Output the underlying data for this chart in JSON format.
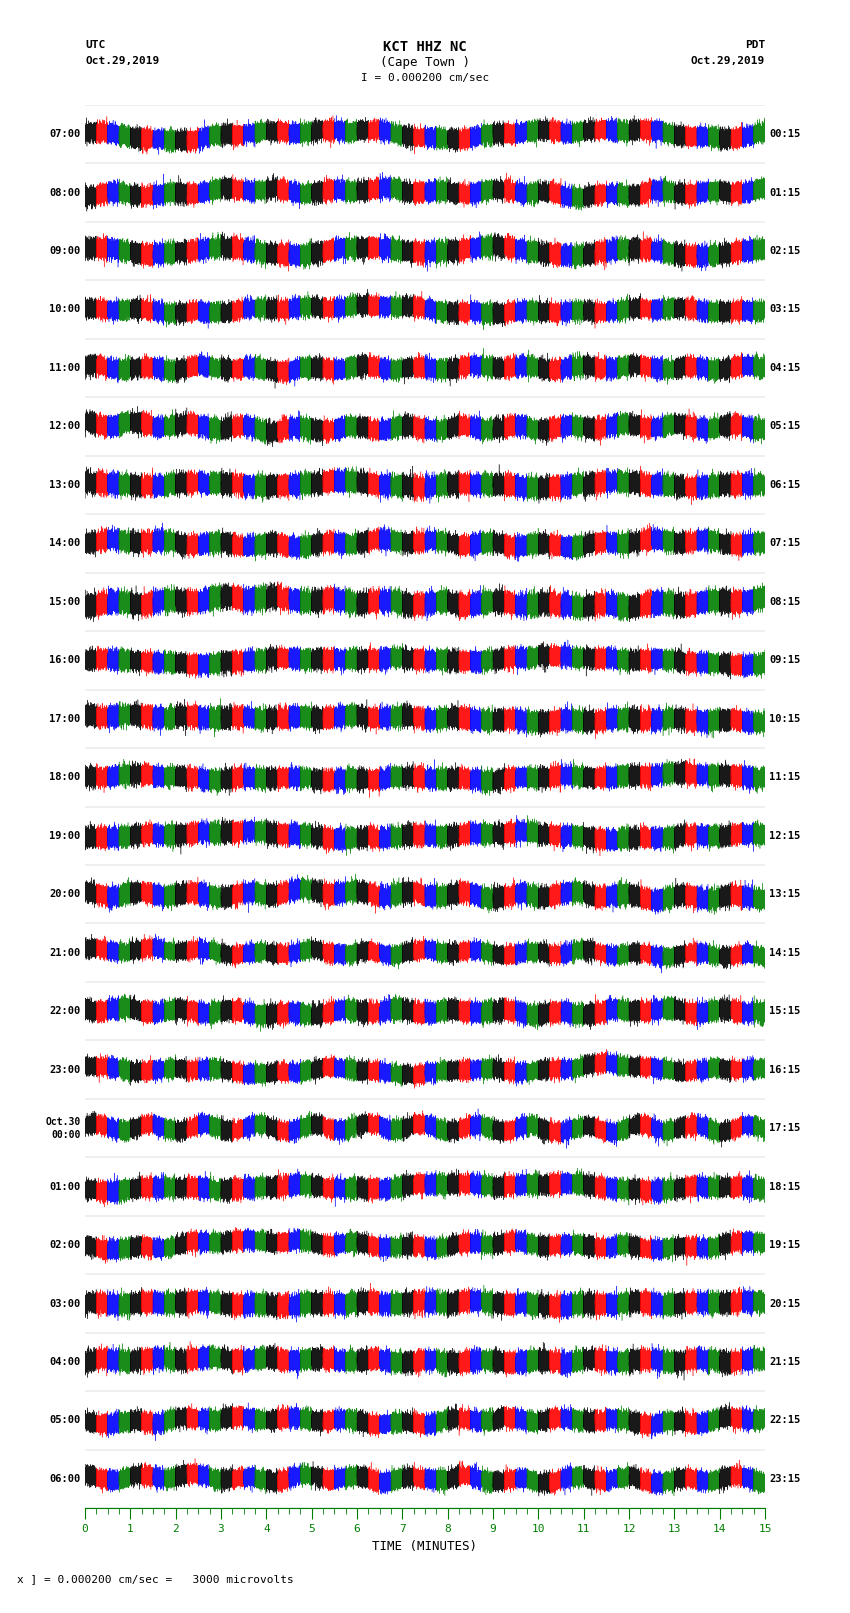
{
  "title_line1": "KCT HHZ NC",
  "title_line2": "(Cape Town )",
  "scale_label": "I = 0.000200 cm/sec",
  "left_label_top": "UTC",
  "left_label_date": "Oct.29,2019",
  "right_label_top": "PDT",
  "right_label_date": "Oct.29,2019",
  "bottom_label": "TIME (MINUTES)",
  "bottom_note": "x ] = 0.000200 cm/sec =   3000 microvolts",
  "left_times": [
    "07:00",
    "08:00",
    "09:00",
    "10:00",
    "11:00",
    "12:00",
    "13:00",
    "14:00",
    "15:00",
    "16:00",
    "17:00",
    "18:00",
    "19:00",
    "20:00",
    "21:00",
    "22:00",
    "23:00",
    "Oct.30\n00:00",
    "01:00",
    "02:00",
    "03:00",
    "04:00",
    "05:00",
    "06:00"
  ],
  "right_times": [
    "00:15",
    "01:15",
    "02:15",
    "03:15",
    "04:15",
    "05:15",
    "06:15",
    "07:15",
    "08:15",
    "09:15",
    "10:15",
    "11:15",
    "12:15",
    "13:15",
    "14:15",
    "15:15",
    "16:15",
    "17:15",
    "18:15",
    "19:15",
    "20:15",
    "21:15",
    "22:15",
    "23:15"
  ],
  "n_rows": 24,
  "n_minutes": 15,
  "sample_rate": 100,
  "colors": [
    "black",
    "red",
    "blue",
    "green"
  ],
  "bg_color": "white",
  "trace_amplitude": 0.35,
  "fig_width": 8.5,
  "fig_height": 16.13,
  "dpi": 100
}
